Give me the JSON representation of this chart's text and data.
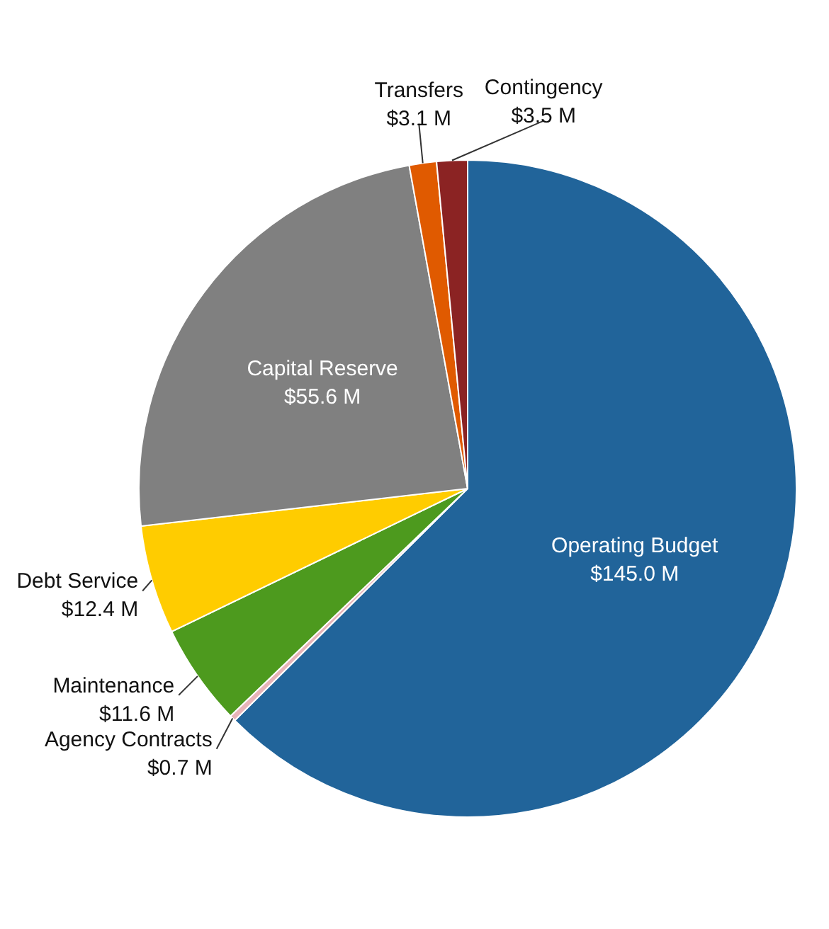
{
  "chart_data": {
    "type": "pie",
    "categories": [
      "Operating Budget",
      "Agency Contracts",
      "Maintenance",
      "Debt Service",
      "Capital Reserve",
      "Transfers",
      "Contingency"
    ],
    "values": [
      145.0,
      0.7,
      11.6,
      12.4,
      55.6,
      3.1,
      3.5
    ],
    "colors": [
      "#21649a",
      "#e8b4b8",
      "#4d9a1e",
      "#ffcc00",
      "#808080",
      "#e05a00",
      "#8b2323"
    ],
    "value_labels": [
      "$145.0 M",
      "$0.7 M",
      "$11.6 M",
      "$12.4 M",
      "$55.6 M",
      "$3.1 M",
      "$3.5 M"
    ]
  }
}
